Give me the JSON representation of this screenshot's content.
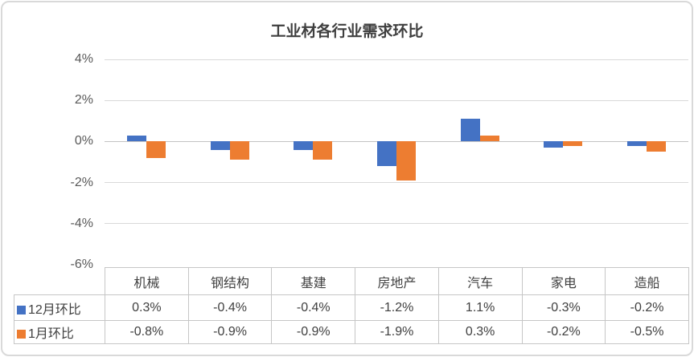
{
  "chart_data": {
    "type": "bar",
    "title": "工业材各行业需求环比",
    "categories": [
      "机械",
      "钢结构",
      "基建",
      "房地产",
      "汽车",
      "家电",
      "造船"
    ],
    "series": [
      {
        "name": "12月环比",
        "color": "#4472C4",
        "values": [
          0.3,
          -0.4,
          -0.4,
          -1.2,
          1.1,
          -0.3,
          -0.2
        ],
        "labels": [
          "0.3%",
          "-0.4%",
          "-0.4%",
          "-1.2%",
          "1.1%",
          "-0.3%",
          "-0.2%"
        ]
      },
      {
        "name": "1月环比",
        "color": "#ED7D31",
        "values": [
          -0.8,
          -0.9,
          -0.9,
          -1.9,
          0.3,
          -0.2,
          -0.5
        ],
        "labels": [
          "-0.8%",
          "-0.9%",
          "-0.9%",
          "-1.9%",
          "0.3%",
          "-0.2%",
          "-0.5%"
        ]
      }
    ],
    "y_axis": {
      "min": -6,
      "max": 4,
      "tick_values": [
        4,
        2,
        0,
        -2,
        -4,
        -6
      ],
      "tick_labels": [
        "4%",
        "2%",
        "0%",
        "-2%",
        "-4%",
        "-6%"
      ],
      "unit": "%"
    },
    "grid": true,
    "legend_position": "table-left",
    "data_table": true
  },
  "colors": {
    "series_blue": "#4472C4",
    "series_orange": "#ED7D31",
    "gridline": "#D9D9D9",
    "zero_line": "#C3C3C3",
    "table_border": "#C6C6C6",
    "title_text": "#3F3F3F",
    "table_text": "#404040",
    "axis_text": "#595959",
    "frame_border": "#D9D9D9"
  }
}
